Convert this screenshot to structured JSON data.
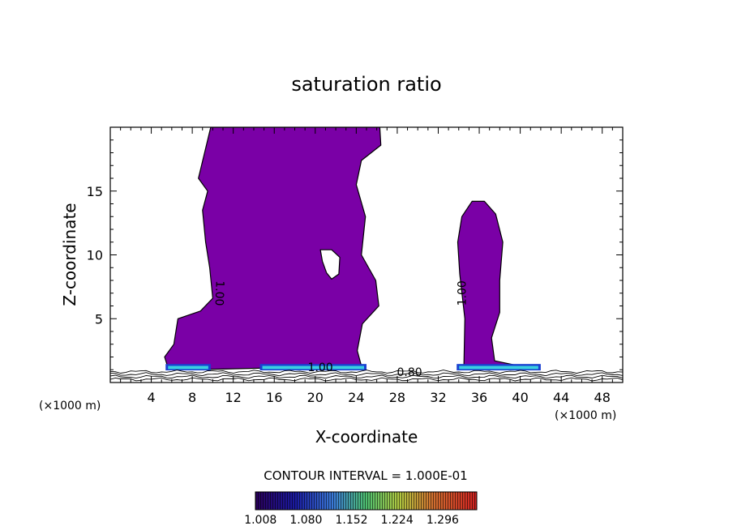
{
  "chart_data": {
    "type": "heatmap",
    "title": "saturation ratio",
    "xlabel": "X-coordinate",
    "ylabel": "Z-coordinate",
    "x_unit": "(×1000 m)",
    "z_unit": "(×1000 m)",
    "xlim": [
      0,
      50
    ],
    "ylim": [
      0,
      20
    ],
    "x_ticks": [
      4,
      8,
      12,
      16,
      20,
      24,
      28,
      32,
      36,
      40,
      44,
      48
    ],
    "y_ticks": [
      5,
      10,
      15
    ],
    "contour_interval_label": "CONTOUR INTERVAL = 1.000E-01",
    "contour_labels": [
      {
        "text": "1.00",
        "x": 10.3,
        "z": 7.0,
        "rotation": 92
      },
      {
        "text": "1.00",
        "x": 34.7,
        "z": 7.0,
        "rotation": -90
      },
      {
        "text": "1.00",
        "x": 20.5,
        "z": 0.9,
        "rotation": 0
      },
      {
        "text": "0.80",
        "x": 29.2,
        "z": 0.5,
        "rotation": 0
      }
    ],
    "colorbar": {
      "ticks": [
        1.008,
        1.08,
        1.152,
        1.224,
        1.296
      ],
      "tick_labels": [
        "1.008",
        "1.080",
        "1.152",
        "1.224",
        "1.296"
      ],
      "range": [
        1.0,
        1.35
      ]
    },
    "fill_color": "#7a00a6",
    "regions": [
      {
        "name": "western-cloud",
        "value": 1.008,
        "outline": [
          [
            9.8,
            20
          ],
          [
            26.3,
            20
          ],
          [
            26.4,
            18.6
          ],
          [
            24.5,
            17.4
          ],
          [
            24.0,
            15.5
          ],
          [
            24.9,
            13.0
          ],
          [
            24.5,
            10.0
          ],
          [
            25.9,
            8.0
          ],
          [
            26.2,
            6.0
          ],
          [
            24.6,
            4.6
          ],
          [
            24.1,
            2.5
          ],
          [
            24.5,
            1.3
          ],
          [
            7.8,
            1.0
          ],
          [
            5.7,
            1.0
          ],
          [
            5.3,
            2.0
          ],
          [
            6.2,
            3.0
          ],
          [
            6.6,
            5.0
          ],
          [
            8.8,
            5.6
          ],
          [
            10.0,
            6.6
          ],
          [
            9.7,
            9.0
          ],
          [
            9.3,
            11.0
          ],
          [
            9.0,
            13.5
          ],
          [
            9.5,
            15.0
          ],
          [
            8.6,
            16.0
          ],
          [
            9.2,
            18.0
          ],
          [
            9.8,
            20
          ]
        ]
      },
      {
        "name": "eastern-cloud",
        "value": 1.008,
        "outline": [
          [
            34.5,
            1.2
          ],
          [
            34.6,
            5.0
          ],
          [
            34.1,
            8.5
          ],
          [
            33.9,
            11.0
          ],
          [
            34.3,
            13.0
          ],
          [
            35.3,
            14.2
          ],
          [
            36.5,
            14.2
          ],
          [
            37.6,
            13.2
          ],
          [
            38.3,
            11.0
          ],
          [
            38.0,
            8.0
          ],
          [
            38.0,
            5.5
          ],
          [
            37.2,
            3.5
          ],
          [
            37.5,
            1.7
          ],
          [
            40.5,
            1.2
          ]
        ]
      },
      {
        "name": "interior-hole",
        "value": 0.95,
        "outline": [
          [
            20.5,
            10.4
          ],
          [
            21.6,
            10.4
          ],
          [
            22.4,
            9.8
          ],
          [
            22.3,
            8.5
          ],
          [
            21.6,
            8.1
          ],
          [
            21.1,
            8.6
          ],
          [
            20.7,
            9.5
          ],
          [
            20.5,
            10.4
          ]
        ]
      }
    ],
    "surface_bands": [
      {
        "x0": 5.4,
        "x1": 9.8,
        "value": 1.152
      },
      {
        "x0": 14.6,
        "x1": 25.0,
        "value": 1.152
      },
      {
        "x0": 33.8,
        "x1": 42.0,
        "value": 1.152
      }
    ]
  }
}
